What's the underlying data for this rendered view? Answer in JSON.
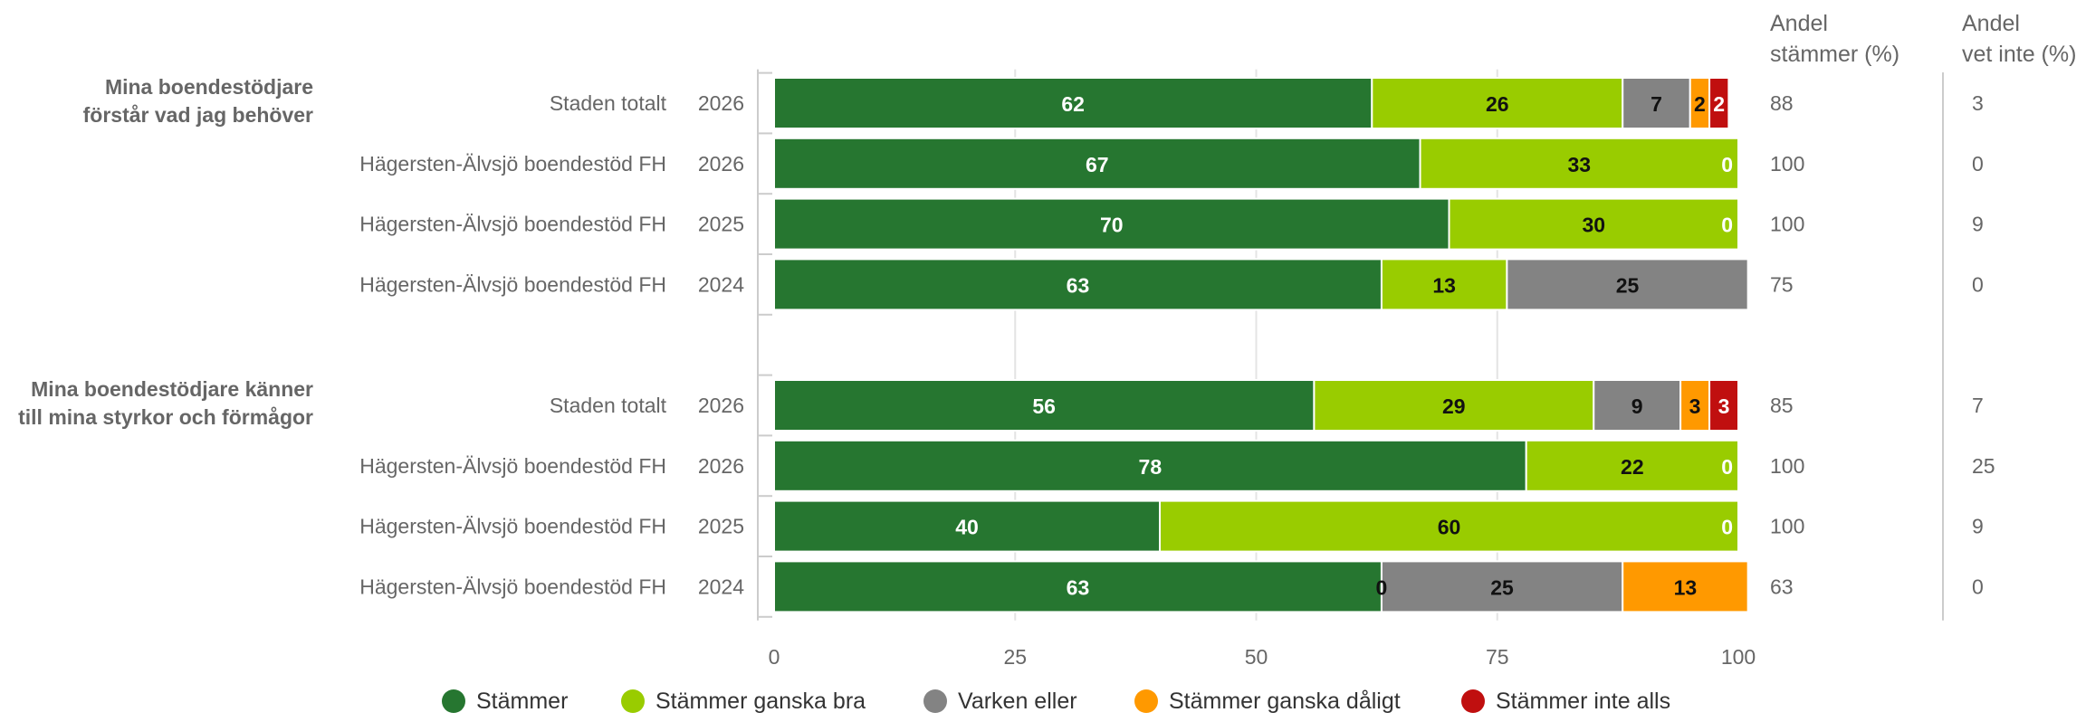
{
  "columns": {
    "share_agree_header": [
      "Andel",
      "stämmer (%)"
    ],
    "share_dontknow_header": [
      "Andel",
      "vet inte (%)"
    ]
  },
  "colors": {
    "Stämmer": "#267630",
    "Stämmer ganska bra": "#99cc00",
    "Varken eller": "#838383",
    "Stämmer ganska dåligt": "#ff9900",
    "Stämmer inte alls": "#c00f0f"
  },
  "chart_data": {
    "type": "bar",
    "orientation": "horizontal",
    "stacked": true,
    "xlim": [
      0,
      100
    ],
    "xticks": [
      0,
      25,
      50,
      75,
      100
    ],
    "grid": true,
    "legend_position": "bottom",
    "series_names": [
      "Stämmer",
      "Stämmer ganska bra",
      "Varken eller",
      "Stämmer ganska dåligt",
      "Stämmer inte alls"
    ],
    "groups": [
      {
        "question": [
          "Mina boendestödjare",
          "förstår vad jag behöver"
        ],
        "rows": [
          {
            "label": "Staden totalt",
            "year": "2026",
            "values": [
              62,
              26,
              7,
              2,
              2
            ],
            "share_agree": "88",
            "share_dontknow": "3"
          },
          {
            "label": "Hägersten-Älvsjö boendestöd FH",
            "year": "2026",
            "values": [
              67,
              33,
              0,
              0,
              0
            ],
            "share_agree": "100",
            "share_dontknow": "0"
          },
          {
            "label": "Hägersten-Älvsjö boendestöd FH",
            "year": "2025",
            "values": [
              70,
              30,
              0,
              0,
              0
            ],
            "share_agree": "100",
            "share_dontknow": "9"
          },
          {
            "label": "Hägersten-Älvsjö boendestöd FH",
            "year": "2024",
            "values": [
              63,
              13,
              25,
              0,
              0
            ],
            "share_agree": "75",
            "share_dontknow": "0"
          }
        ]
      },
      {
        "question": [
          "Mina boendestödjare känner",
          "till mina styrkor och förmågor"
        ],
        "rows": [
          {
            "label": "Staden totalt",
            "year": "2026",
            "values": [
              56,
              29,
              9,
              3,
              3
            ],
            "share_agree": "85",
            "share_dontknow": "7"
          },
          {
            "label": "Hägersten-Älvsjö boendestöd FH",
            "year": "2026",
            "values": [
              78,
              22,
              0,
              0,
              0
            ],
            "share_agree": "100",
            "share_dontknow": "25"
          },
          {
            "label": "Hägersten-Älvsjö boendestöd FH",
            "year": "2025",
            "values": [
              40,
              60,
              0,
              0,
              0
            ],
            "share_agree": "100",
            "share_dontknow": "9"
          },
          {
            "label": "Hägersten-Älvsjö boendestöd FH",
            "year": "2024",
            "values": [
              63,
              0,
              25,
              13,
              0
            ],
            "share_agree": "63",
            "share_dontknow": "0"
          }
        ]
      }
    ]
  }
}
